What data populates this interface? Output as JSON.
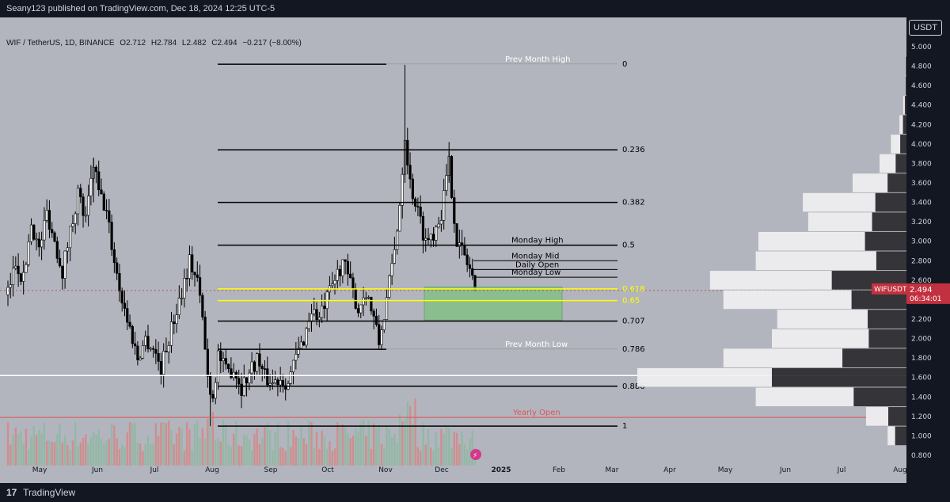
{
  "header": {
    "published": "Seany123 published on TradingView.com, Dec 18, 2024 12:25 UTC-5"
  },
  "legend": {
    "symbol": "WIF / TetherUS, 1D, BINANCE",
    "open": "O2.712",
    "high": "H2.784",
    "low": "L2.482",
    "close": "C2.494",
    "change": "−0.217 (−8.00%)"
  },
  "currency_button": "USDT",
  "footer": {
    "brand": "TradingView",
    "logo_icon": "tradingview-logo-icon"
  },
  "price_tag": {
    "symbol": "WIFUSDT",
    "price": "2.494",
    "countdown": "06:34:01",
    "color": "#c2313f"
  },
  "colors": {
    "bg": "#b2b5be",
    "up": "#000000",
    "down": "#000000",
    "fib_line": "#000000",
    "fib_gold": "#ffff00",
    "zone": "#7ec27e",
    "yearly_open": "#e05555",
    "volume_profile_light": "#f0f0f2",
    "volume_profile_dark": "#2a2a2e"
  },
  "chart_data": {
    "type": "candlestick",
    "ylim": [
      0.7,
      5.2
    ],
    "price_ticks": [
      "5.000",
      "4.800",
      "4.600",
      "4.400",
      "4.200",
      "4.000",
      "3.800",
      "3.600",
      "3.400",
      "3.200",
      "3.000",
      "2.800",
      "2.600",
      "2.400",
      "2.200",
      "2.000",
      "1.800",
      "1.600",
      "1.400",
      "1.200",
      "1.000",
      "0.800"
    ],
    "time_ticks": [
      "May",
      "Jun",
      "Jul",
      "Aug",
      "Sep",
      "Oct",
      "Nov",
      "Dec",
      "2025",
      "Feb",
      "Mar",
      "Apr",
      "May",
      "Jun",
      "Jul",
      "Aug"
    ],
    "close_path": [
      [
        0,
        2.45
      ],
      [
        3,
        2.8
      ],
      [
        6,
        2.6
      ],
      [
        9,
        3.2
      ],
      [
        12,
        2.9
      ],
      [
        15,
        3.3
      ],
      [
        18,
        3.0
      ],
      [
        21,
        2.7
      ],
      [
        24,
        3.1
      ],
      [
        27,
        3.5
      ],
      [
        30,
        3.2
      ],
      [
        33,
        3.8
      ],
      [
        35,
        3.5
      ],
      [
        38,
        3.3
      ],
      [
        41,
        2.8
      ],
      [
        44,
        2.4
      ],
      [
        47,
        2.1
      ],
      [
        50,
        1.8
      ],
      [
        53,
        2.0
      ],
      [
        56,
        1.9
      ],
      [
        59,
        1.7
      ],
      [
        62,
        2.0
      ],
      [
        64,
        2.2
      ],
      [
        67,
        2.5
      ],
      [
        70,
        2.8
      ],
      [
        73,
        2.6
      ],
      [
        75,
        2.2
      ],
      [
        77,
        1.6
      ],
      [
        79,
        1.4
      ],
      [
        81,
        1.85
      ],
      [
        84,
        1.65
      ],
      [
        87,
        1.7
      ],
      [
        90,
        1.5
      ],
      [
        93,
        1.65
      ],
      [
        96,
        1.8
      ],
      [
        99,
        1.6
      ],
      [
        102,
        1.55
      ],
      [
        105,
        1.6
      ],
      [
        108,
        1.55
      ],
      [
        111,
        1.8
      ],
      [
        114,
        2.0
      ],
      [
        117,
        2.3
      ],
      [
        120,
        2.2
      ],
      [
        123,
        2.4
      ],
      [
        126,
        2.6
      ],
      [
        129,
        2.8
      ],
      [
        132,
        2.55
      ],
      [
        135,
        2.3
      ],
      [
        138,
        2.5
      ],
      [
        141,
        2.2
      ],
      [
        143,
        1.95
      ],
      [
        146,
        2.4
      ],
      [
        149,
        2.9
      ],
      [
        151,
        3.4
      ],
      [
        153,
        4.1
      ],
      [
        155,
        3.6
      ],
      [
        158,
        3.3
      ],
      [
        161,
        3.0
      ],
      [
        164,
        3.1
      ],
      [
        167,
        3.3
      ],
      [
        170,
        3.8
      ],
      [
        173,
        3.0
      ],
      [
        176,
        2.85
      ],
      [
        179,
        2.65
      ],
      [
        180,
        2.494
      ]
    ],
    "volume_profile": [
      {
        "price": 4.8,
        "total": 0.004,
        "down_share": 0.6
      },
      {
        "price": 4.6,
        "total": 0.006,
        "down_share": 0.6
      },
      {
        "price": 4.4,
        "total": 0.012,
        "down_share": 0.5
      },
      {
        "price": 4.2,
        "total": 0.026,
        "down_share": 0.5
      },
      {
        "price": 4.0,
        "total": 0.058,
        "down_share": 0.4
      },
      {
        "price": 3.8,
        "total": 0.1,
        "down_share": 0.4
      },
      {
        "price": 3.6,
        "total": 0.2,
        "down_share": 0.35
      },
      {
        "price": 3.4,
        "total": 0.385,
        "down_share": 0.3
      },
      {
        "price": 3.2,
        "total": 0.365,
        "down_share": 0.35
      },
      {
        "price": 3.0,
        "total": 0.55,
        "down_share": 0.28
      },
      {
        "price": 2.8,
        "total": 0.56,
        "down_share": 0.2
      },
      {
        "price": 2.6,
        "total": 0.73,
        "down_share": 0.38
      },
      {
        "price": 2.4,
        "total": 0.68,
        "down_share": 0.3
      },
      {
        "price": 2.2,
        "total": 0.48,
        "down_share": 0.3
      },
      {
        "price": 2.0,
        "total": 0.5,
        "down_share": 0.28
      },
      {
        "price": 1.8,
        "total": 0.68,
        "down_share": 0.35
      },
      {
        "price": 1.6,
        "total": 1.0,
        "down_share": 0.5
      },
      {
        "price": 1.4,
        "total": 0.56,
        "down_share": 0.35
      },
      {
        "price": 1.2,
        "total": 0.15,
        "down_share": 0.45
      },
      {
        "price": 1.0,
        "total": 0.07,
        "down_share": 0.6
      }
    ],
    "fib_levels": [
      {
        "label": "0",
        "price": 4.82,
        "gold": false
      },
      {
        "label": "0.236",
        "price": 3.94,
        "gold": false
      },
      {
        "label": "0.382",
        "price": 3.4,
        "gold": false
      },
      {
        "label": "0.5",
        "price": 2.96,
        "gold": false
      },
      {
        "label": "0.618",
        "price": 2.51,
        "gold": true
      },
      {
        "label": "0.65",
        "price": 2.39,
        "gold": true
      },
      {
        "label": "0.707",
        "price": 2.18,
        "gold": false
      },
      {
        "label": "0.786",
        "price": 1.89,
        "gold": false
      },
      {
        "label": "0.886",
        "price": 1.51,
        "gold": false
      },
      {
        "label": "1",
        "price": 1.1,
        "gold": false
      }
    ],
    "annotations": [
      {
        "label": "Prev Month High",
        "price": 4.82,
        "color": "#ffffff"
      },
      {
        "label": "Monday High",
        "price": 2.96,
        "color": "#000000"
      },
      {
        "label": "Monday Mid",
        "price": 2.8,
        "color": "#000000"
      },
      {
        "label": "Daily Open",
        "price": 2.71,
        "color": "#000000"
      },
      {
        "label": "Monday Low",
        "price": 2.63,
        "color": "#000000"
      },
      {
        "label": "Prev Month Low",
        "price": 1.89,
        "color": "#ffffff"
      },
      {
        "label": "Yearly Open",
        "price": 1.19,
        "color": "#e05555"
      }
    ],
    "zone": {
      "price_top": 2.53,
      "price_bottom": 2.19
    }
  }
}
